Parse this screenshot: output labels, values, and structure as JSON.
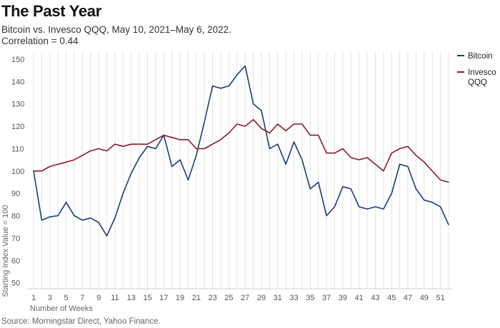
{
  "chart_data": {
    "type": "line",
    "title": "The Past Year",
    "subtitle": "Bitcoin vs. Invesco QQQ, May 10, 2021–May 6, 2022.",
    "annotation": "Correlation = 0.44",
    "xlabel": "Number of Weeks",
    "ylabel": "Starting Index Value = 100",
    "source": "Source: Morningstar Direct, Yahoo Finance.",
    "xlim": [
      1,
      52
    ],
    "ylim": [
      40,
      150
    ],
    "x_ticks": [
      1,
      3,
      5,
      7,
      9,
      11,
      13,
      15,
      17,
      19,
      21,
      23,
      25,
      27,
      29,
      31,
      33,
      35,
      37,
      39,
      41,
      43,
      45,
      47,
      49,
      51
    ],
    "y_ticks": [
      50,
      60,
      70,
      80,
      90,
      100,
      110,
      120,
      130,
      140,
      150
    ],
    "grid": "vertical",
    "legend_position": "right",
    "x": [
      1,
      2,
      3,
      4,
      5,
      6,
      7,
      8,
      9,
      10,
      11,
      12,
      13,
      14,
      15,
      16,
      17,
      18,
      19,
      20,
      21,
      22,
      23,
      24,
      25,
      26,
      27,
      28,
      29,
      30,
      31,
      32,
      33,
      34,
      35,
      36,
      37,
      38,
      39,
      40,
      41,
      42,
      43,
      44,
      45,
      46,
      47,
      48,
      49,
      50,
      51,
      52
    ],
    "series": [
      {
        "name": "Bitcoin",
        "color": "#1f3a7a",
        "values": [
          100,
          78,
          79.5,
          80,
          86,
          80,
          78,
          79,
          77,
          71,
          79,
          90,
          99,
          106,
          111,
          110,
          116,
          102,
          105,
          96,
          107,
          122,
          138,
          137,
          138,
          143,
          147,
          130,
          127,
          110,
          112,
          103,
          113,
          105,
          92,
          95,
          80,
          84,
          93,
          92,
          84,
          83,
          84,
          83,
          90,
          103,
          102,
          92,
          87,
          86,
          84,
          76
        ]
      },
      {
        "name": "Invesco QQQ",
        "color": "#8c1a24",
        "values": [
          100,
          100,
          102,
          103,
          104,
          105,
          107,
          109,
          110,
          109,
          112,
          111,
          112,
          112,
          112,
          114,
          116,
          115,
          114,
          114,
          110,
          110,
          112,
          114,
          117,
          121,
          120,
          123,
          119,
          117,
          121,
          118,
          121,
          121,
          116,
          116,
          108,
          108,
          110,
          106,
          105,
          106,
          103,
          100,
          108,
          110,
          111,
          107,
          104,
          100,
          96,
          95
        ]
      }
    ]
  }
}
